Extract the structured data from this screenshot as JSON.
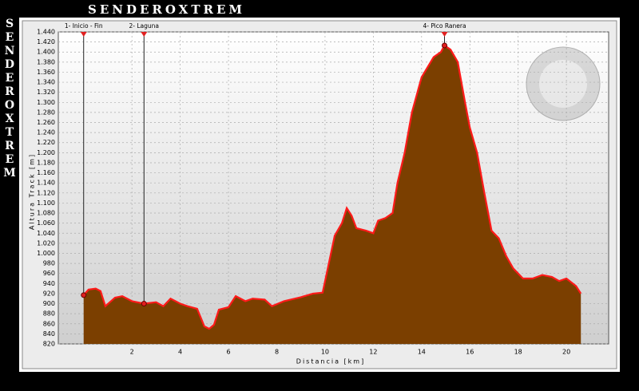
{
  "chart_data": {
    "type": "area",
    "title": "SENDEROXTREM",
    "xlabel": "Distancia [km]",
    "ylabel": "Altura Track [m]",
    "xlim": [
      -1.05,
      21.75
    ],
    "ylim": [
      820,
      1440
    ],
    "xticks": [
      2,
      4,
      6,
      8,
      10,
      12,
      14,
      16,
      18,
      20
    ],
    "yticks": [
      820,
      840,
      860,
      880,
      900,
      920,
      940,
      960,
      980,
      {
        "value": 1000,
        "label": "1.000"
      },
      {
        "value": 1020,
        "label": "1.020"
      },
      {
        "value": 1040,
        "label": "1.040"
      },
      {
        "value": 1060,
        "label": "1.060"
      },
      {
        "value": 1080,
        "label": "1.080"
      },
      {
        "value": 1100,
        "label": "1.100"
      },
      {
        "value": 1120,
        "label": "1.120"
      },
      {
        "value": 1140,
        "label": "1.140"
      },
      {
        "value": 1160,
        "label": "1.160"
      },
      {
        "value": 1180,
        "label": "1.180"
      },
      {
        "value": 1200,
        "label": "1.200"
      },
      {
        "value": 1220,
        "label": "1.220"
      },
      {
        "value": 1240,
        "label": "1.240"
      },
      {
        "value": 1260,
        "label": "1.260"
      },
      {
        "value": 1280,
        "label": "1.280"
      },
      {
        "value": 1300,
        "label": "1.300"
      },
      {
        "value": 1320,
        "label": "1.320"
      },
      {
        "value": 1340,
        "label": "1.340"
      },
      {
        "value": 1360,
        "label": "1.360"
      },
      {
        "value": 1380,
        "label": "1.380"
      },
      {
        "value": 1400,
        "label": "1.400"
      },
      {
        "value": 1420,
        "label": "1.420"
      },
      {
        "value": 1440,
        "label": "1.440"
      }
    ],
    "grid": true,
    "fill_color": "#7b3f00",
    "line_color": "#ff1a1a",
    "x": [
      0,
      0.2,
      0.5,
      0.7,
      0.9,
      1.3,
      1.6,
      2.0,
      2.5,
      3.0,
      3.3,
      3.6,
      4.0,
      4.3,
      4.7,
      5.0,
      5.2,
      5.4,
      5.6,
      6.0,
      6.3,
      6.7,
      7.0,
      7.5,
      7.8,
      8.3,
      9.0,
      9.5,
      9.9,
      10.2,
      10.4,
      10.7,
      10.9,
      11.1,
      11.3,
      11.7,
      12.0,
      12.2,
      12.5,
      12.8,
      13.0,
      13.3,
      13.6,
      14.0,
      14.5,
      14.8,
      14.95,
      15.2,
      15.5,
      15.8,
      16.0,
      16.3,
      16.6,
      16.9,
      17.2,
      17.5,
      17.8,
      18.2,
      18.6,
      19.0,
      19.4,
      19.7,
      20.0,
      20.4,
      20.6
    ],
    "values": [
      917,
      928,
      930,
      925,
      895,
      912,
      915,
      905,
      900,
      903,
      895,
      910,
      900,
      895,
      890,
      855,
      850,
      858,
      888,
      893,
      915,
      905,
      910,
      908,
      895,
      905,
      913,
      920,
      922,
      990,
      1035,
      1060,
      1090,
      1075,
      1050,
      1045,
      1040,
      1065,
      1070,
      1080,
      1140,
      1200,
      1280,
      1350,
      1390,
      1400,
      1413,
      1405,
      1380,
      1300,
      1250,
      1200,
      1120,
      1045,
      1030,
      995,
      970,
      950,
      950,
      957,
      953,
      945,
      950,
      935,
      920
    ],
    "waypoints": [
      {
        "label": "1- Inicio - Fin",
        "x": 0,
        "y": 917
      },
      {
        "label": "2- Laguna",
        "x": 2.5,
        "y": 900
      },
      {
        "label": "4- Pico Ranera",
        "x": 14.95,
        "y": 1413
      }
    ]
  }
}
